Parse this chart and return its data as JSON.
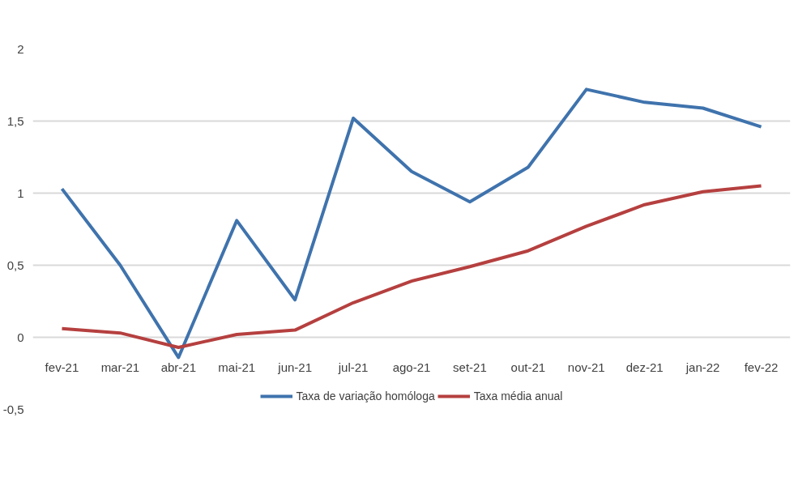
{
  "chart_data": {
    "type": "line",
    "categories": [
      "fev-21",
      "mar-21",
      "abr-21",
      "mai-21",
      "jun-21",
      "jul-21",
      "ago-21",
      "set-21",
      "out-21",
      "nov-21",
      "dez-21",
      "jan-22",
      "fev-22"
    ],
    "series": [
      {
        "name": "Taxa de variação homóloga",
        "color": "#3f73ad",
        "values": [
          1.03,
          0.5,
          -0.14,
          0.81,
          0.26,
          1.52,
          1.15,
          0.94,
          1.18,
          1.72,
          1.63,
          1.59,
          1.46
        ]
      },
      {
        "name": "Taxa média anual",
        "color": "#b5403f",
        "values": [
          0.06,
          0.03,
          -0.07,
          0.02,
          0.05,
          0.24,
          0.39,
          0.49,
          0.6,
          0.77,
          0.92,
          1.01,
          1.05
        ]
      }
    ],
    "ylim": [
      -0.5,
      2
    ],
    "yticks": [
      {
        "value": -0.5,
        "label": "-0,5"
      },
      0,
      {
        "value": 0.5,
        "label": "0,5"
      },
      1,
      {
        "value": 1.5,
        "label": "1,5"
      },
      2
    ],
    "grid": "y",
    "legend": "bottom",
    "marker": "none",
    "line_style": "solid"
  }
}
